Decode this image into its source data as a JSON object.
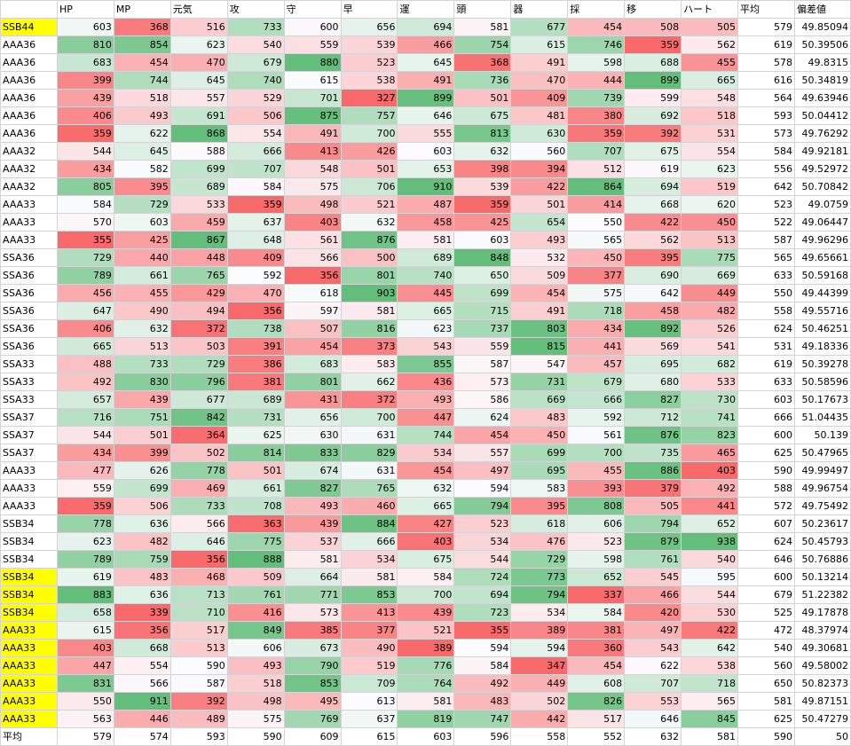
{
  "headers": [
    "",
    "HP",
    "MP",
    "元気",
    "攻",
    "守",
    "早",
    "運",
    "頭",
    "器",
    "採",
    "移",
    "ハート",
    "平均",
    "偏差値"
  ],
  "rows": [
    {
      "label": "SSB44",
      "hl": true,
      "v": [
        603,
        368,
        516,
        733,
        600,
        656,
        694,
        581,
        677,
        454,
        508,
        505
      ],
      "avg": 579,
      "dev": "49.85094"
    },
    {
      "label": "AAA36",
      "hl": false,
      "v": [
        810,
        854,
        623,
        540,
        559,
        539,
        466,
        754,
        615,
        746,
        359,
        562
      ],
      "avg": 619,
      "dev": "50.39506"
    },
    {
      "label": "AAA36",
      "hl": false,
      "v": [
        683,
        454,
        470,
        679,
        880,
        523,
        645,
        368,
        491,
        598,
        688,
        455
      ],
      "avg": 578,
      "dev": "49.8315"
    },
    {
      "label": "AAA36",
      "hl": false,
      "v": [
        399,
        744,
        645,
        740,
        615,
        538,
        491,
        736,
        470,
        444,
        899,
        665
      ],
      "avg": 616,
      "dev": "50.34819"
    },
    {
      "label": "AAA36",
      "hl": false,
      "v": [
        439,
        518,
        557,
        529,
        701,
        327,
        899,
        501,
        409,
        739,
        599,
        548
      ],
      "avg": 564,
      "dev": "49.63946"
    },
    {
      "label": "AAA36",
      "hl": false,
      "v": [
        406,
        493,
        691,
        506,
        875,
        757,
        646,
        675,
        481,
        380,
        692,
        518
      ],
      "avg": 593,
      "dev": "50.04412"
    },
    {
      "label": "AAA36",
      "hl": false,
      "v": [
        359,
        622,
        868,
        554,
        491,
        700,
        555,
        813,
        630,
        359,
        392,
        531
      ],
      "avg": 573,
      "dev": "49.76292"
    },
    {
      "label": "AAA32",
      "hl": false,
      "v": [
        544,
        645,
        588,
        666,
        413,
        426,
        603,
        632,
        560,
        707,
        675,
        554
      ],
      "avg": 584,
      "dev": "49.92181"
    },
    {
      "label": "AAA32",
      "hl": false,
      "v": [
        434,
        582,
        699,
        707,
        548,
        501,
        653,
        398,
        394,
        512,
        619,
        623
      ],
      "avg": 556,
      "dev": "49.52972"
    },
    {
      "label": "AAA32",
      "hl": false,
      "v": [
        805,
        395,
        689,
        584,
        575,
        706,
        910,
        539,
        422,
        864,
        694,
        519
      ],
      "avg": 642,
      "dev": "50.70842"
    },
    {
      "label": "AAA33",
      "hl": false,
      "v": [
        584,
        729,
        533,
        359,
        498,
        521,
        487,
        359,
        501,
        414,
        668,
        620
      ],
      "avg": 523,
      "dev": "49.0759"
    },
    {
      "label": "AAA33",
      "hl": false,
      "v": [
        570,
        603,
        459,
        637,
        403,
        632,
        458,
        425,
        654,
        550,
        422,
        450
      ],
      "avg": 522,
      "dev": "49.06447"
    },
    {
      "label": "AAA33",
      "hl": false,
      "v": [
        355,
        425,
        867,
        648,
        561,
        876,
        581,
        603,
        493,
        565,
        562,
        513
      ],
      "avg": 587,
      "dev": "49.96296"
    },
    {
      "label": "SSA36",
      "hl": false,
      "v": [
        729,
        440,
        448,
        409,
        566,
        500,
        689,
        848,
        532,
        450,
        395,
        775
      ],
      "avg": 565,
      "dev": "49.65661"
    },
    {
      "label": "SSA36",
      "hl": false,
      "v": [
        789,
        661,
        765,
        592,
        356,
        801,
        740,
        650,
        509,
        377,
        690,
        669
      ],
      "avg": 633,
      "dev": "50.59168"
    },
    {
      "label": "SSA36",
      "hl": false,
      "v": [
        456,
        455,
        429,
        470,
        618,
        903,
        445,
        699,
        454,
        575,
        642,
        449
      ],
      "avg": 550,
      "dev": "49.44399"
    },
    {
      "label": "SSA36",
      "hl": false,
      "v": [
        647,
        490,
        494,
        356,
        597,
        581,
        665,
        715,
        491,
        718,
        458,
        482
      ],
      "avg": 558,
      "dev": "49.55716"
    },
    {
      "label": "SSA36",
      "hl": false,
      "v": [
        406,
        632,
        372,
        738,
        507,
        816,
        623,
        737,
        803,
        434,
        892,
        526
      ],
      "avg": 624,
      "dev": "50.46251"
    },
    {
      "label": "SSA36",
      "hl": false,
      "v": [
        665,
        513,
        503,
        391,
        454,
        373,
        543,
        559,
        815,
        441,
        569,
        541
      ],
      "avg": 531,
      "dev": "49.18336"
    },
    {
      "label": "SSA33",
      "hl": false,
      "v": [
        488,
        733,
        729,
        386,
        683,
        583,
        855,
        587,
        547,
        457,
        695,
        682
      ],
      "avg": 619,
      "dev": "50.39278"
    },
    {
      "label": "SSA33",
      "hl": false,
      "v": [
        492,
        830,
        796,
        381,
        801,
        662,
        436,
        573,
        731,
        679,
        680,
        533
      ],
      "avg": 633,
      "dev": "50.58596"
    },
    {
      "label": "SSA33",
      "hl": false,
      "v": [
        657,
        439,
        677,
        689,
        431,
        372,
        493,
        586,
        669,
        666,
        827,
        730
      ],
      "avg": 603,
      "dev": "50.17673"
    },
    {
      "label": "SSA37",
      "hl": false,
      "v": [
        716,
        751,
        842,
        731,
        656,
        700,
        447,
        624,
        483,
        592,
        712,
        741
      ],
      "avg": 666,
      "dev": "51.04435"
    },
    {
      "label": "SSA37",
      "hl": false,
      "v": [
        544,
        501,
        364,
        625,
        630,
        631,
        744,
        454,
        450,
        561,
        876,
        823
      ],
      "avg": 600,
      "dev": "50.139"
    },
    {
      "label": "SSA37",
      "hl": false,
      "v": [
        434,
        399,
        502,
        814,
        833,
        829,
        534,
        557,
        699,
        700,
        735,
        465
      ],
      "avg": 625,
      "dev": "50.47965"
    },
    {
      "label": "AAA33",
      "hl": false,
      "v": [
        477,
        626,
        778,
        501,
        674,
        631,
        454,
        497,
        695,
        455,
        886,
        403
      ],
      "avg": 590,
      "dev": "49.99497"
    },
    {
      "label": "AAA33",
      "hl": false,
      "v": [
        559,
        699,
        469,
        661,
        827,
        765,
        632,
        594,
        583,
        393,
        379,
        492
      ],
      "avg": 588,
      "dev": "49.96754"
    },
    {
      "label": "AAA33",
      "hl": false,
      "v": [
        359,
        506,
        733,
        708,
        493,
        460,
        665,
        794,
        395,
        808,
        505,
        441
      ],
      "avg": 572,
      "dev": "49.75492"
    },
    {
      "label": "SSB34",
      "hl": false,
      "v": [
        778,
        636,
        566,
        363,
        439,
        884,
        427,
        523,
        618,
        606,
        794,
        652
      ],
      "avg": 607,
      "dev": "50.23617"
    },
    {
      "label": "SSB34",
      "hl": false,
      "v": [
        623,
        482,
        646,
        775,
        537,
        666,
        403,
        534,
        476,
        523,
        879,
        938
      ],
      "avg": 624,
      "dev": "50.45793"
    },
    {
      "label": "SSB34",
      "hl": false,
      "v": [
        789,
        759,
        356,
        888,
        581,
        534,
        675,
        544,
        729,
        598,
        761,
        540
      ],
      "avg": 646,
      "dev": "50.76886"
    },
    {
      "label": "SSB34",
      "hl": true,
      "v": [
        619,
        483,
        468,
        509,
        664,
        581,
        584,
        724,
        773,
        652,
        545,
        595
      ],
      "avg": 600,
      "dev": "50.13214"
    },
    {
      "label": "SSB34",
      "hl": true,
      "v": [
        883,
        636,
        713,
        761,
        771,
        853,
        700,
        694,
        794,
        337,
        466,
        544
      ],
      "avg": 679,
      "dev": "51.22382"
    },
    {
      "label": "SSB34",
      "hl": true,
      "v": [
        658,
        339,
        710,
        416,
        573,
        413,
        439,
        723,
        534,
        584,
        420,
        530
      ],
      "avg": 525,
      "dev": "49.17878"
    },
    {
      "label": "AAA33",
      "hl": true,
      "v": [
        615,
        356,
        517,
        849,
        385,
        377,
        521,
        355,
        389,
        381,
        497,
        422
      ],
      "avg": 472,
      "dev": "48.37974"
    },
    {
      "label": "AAA33",
      "hl": true,
      "v": [
        403,
        668,
        513,
        606,
        673,
        490,
        389,
        594,
        594,
        360,
        543,
        642
      ],
      "avg": 540,
      "dev": "49.30681"
    },
    {
      "label": "AAA33",
      "hl": true,
      "v": [
        447,
        554,
        590,
        493,
        790,
        519,
        776,
        584,
        347,
        454,
        622,
        538
      ],
      "avg": 560,
      "dev": "49.58002"
    },
    {
      "label": "AAA33",
      "hl": true,
      "v": [
        831,
        566,
        587,
        518,
        853,
        709,
        764,
        492,
        449,
        608,
        707,
        718
      ],
      "avg": 650,
      "dev": "50.82373"
    },
    {
      "label": "AAA33",
      "hl": true,
      "v": [
        550,
        911,
        392,
        498,
        495,
        613,
        581,
        483,
        502,
        826,
        553,
        565
      ],
      "avg": 581,
      "dev": "49.87151"
    },
    {
      "label": "AAA33",
      "hl": true,
      "v": [
        563,
        446,
        489,
        575,
        769,
        637,
        819,
        747,
        442,
        517,
        646,
        845
      ],
      "avg": 625,
      "dev": "50.47279"
    }
  ],
  "footer": {
    "label": "平均",
    "v": [
      579,
      574,
      593,
      590,
      609,
      615,
      603,
      596,
      558,
      552,
      632,
      581
    ],
    "avg": 590,
    "dev": "50"
  },
  "colors": {
    "low": "#f8696b",
    "mid": "#fcfcff",
    "high": "#63be7b",
    "highlight": "#ffff00",
    "grid": "#d4d4d4"
  }
}
